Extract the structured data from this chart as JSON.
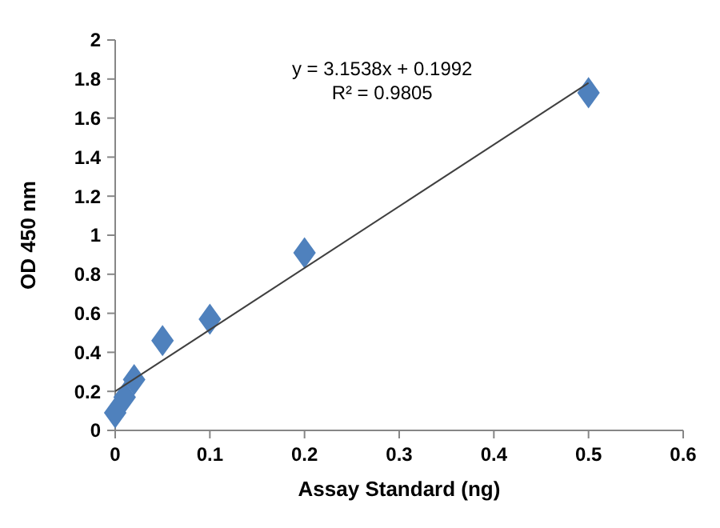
{
  "chart_data": {
    "type": "scatter",
    "xlabel": "Assay Standard (ng)",
    "ylabel": "OD 450 nm",
    "x": [
      0,
      0.01,
      0.02,
      0.05,
      0.1,
      0.2,
      0.5
    ],
    "series": [
      {
        "color": "#4f81bd",
        "marker": "diamond",
        "values": [
          0.09,
          0.17,
          0.26,
          0.46,
          0.57,
          0.91,
          1.73
        ]
      },
      {
        "type": "line",
        "color": "#404040",
        "x": [
          0,
          0.5
        ],
        "values": [
          0.2,
          1.78
        ]
      }
    ],
    "annotations": [
      "y = 3.1538x + 0.1992",
      "R² = 0.9805"
    ],
    "xlim": [
      0,
      0.6
    ],
    "xticks": [
      0,
      0.1,
      0.2,
      0.3,
      0.4,
      0.5,
      0.6
    ],
    "ylim": [
      0,
      2
    ],
    "yticks": [
      0,
      0.2,
      0.4,
      0.6,
      0.8,
      1,
      1.2,
      1.4,
      1.6,
      1.8,
      2
    ],
    "grid": false
  }
}
